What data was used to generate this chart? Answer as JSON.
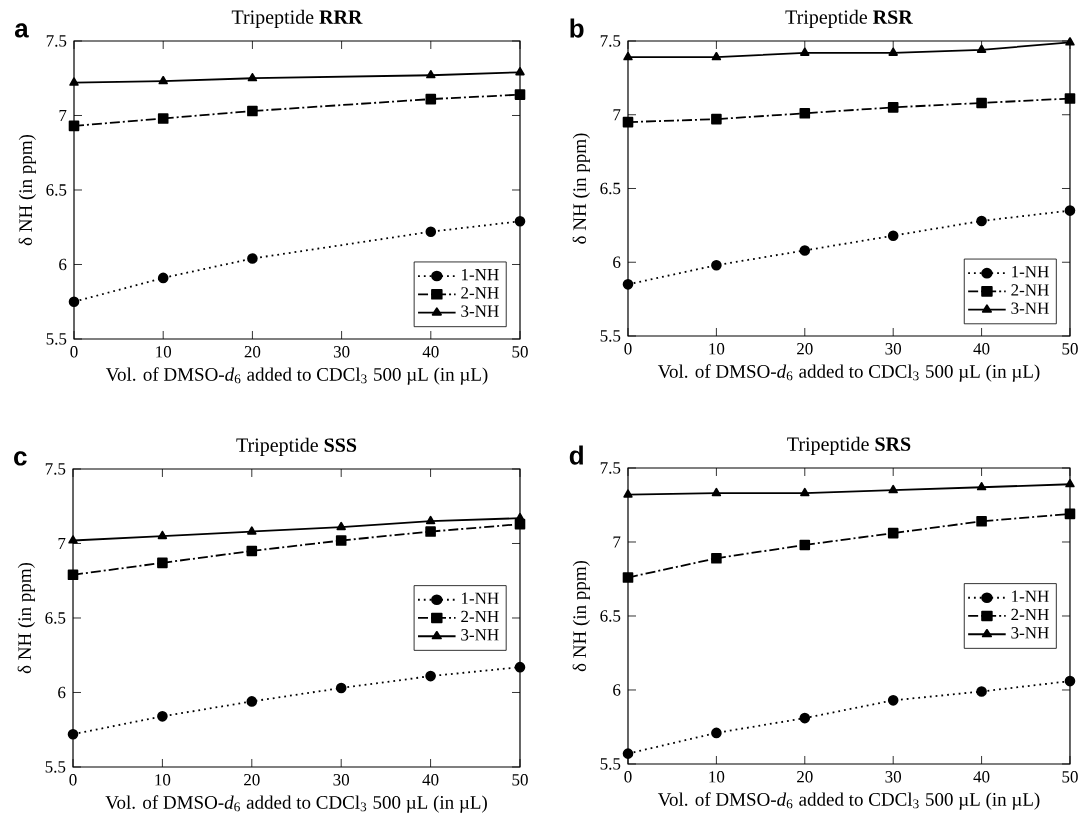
{
  "chart_data": [
    {
      "type": "line",
      "title": "Tripeptide **RRR**",
      "xlabel": "Vol. of DMSO-*d*$_{6}$ added to CDCl$_{3}$ 500 µL (in µL)",
      "ylabel": "δ NH (in ppm)",
      "annotations": [
        "a"
      ],
      "x": [
        0,
        10,
        20,
        40,
        50
      ],
      "xlim": [
        0,
        50
      ],
      "ylim": [
        5.5,
        7.5
      ],
      "xticks": [
        0,
        10,
        20,
        30,
        40,
        50
      ],
      "yticks": [
        5.5,
        6,
        6.5,
        7,
        7.5
      ],
      "legend": "bottom right",
      "series": [
        {
          "name": "1-NH",
          "color": "#000000",
          "marker": "circle",
          "line_style": "dotted",
          "values": [
            5.75,
            5.91,
            6.04,
            6.22,
            6.29
          ]
        },
        {
          "name": "2-NH",
          "color": "#000000",
          "marker": "square",
          "line_style": "dashdot",
          "values": [
            6.93,
            6.98,
            7.03,
            7.11,
            7.14
          ]
        },
        {
          "name": "3-NH",
          "color": "#000000",
          "marker": "triangle",
          "line_style": "solid",
          "values": [
            7.22,
            7.23,
            7.25,
            7.27,
            7.29
          ]
        }
      ]
    },
    {
      "type": "line",
      "title": "Tripeptide **RSR**",
      "xlabel": "Vol. of DMSO-*d*$_{6}$ added to CDCl$_{3}$ 500 µL (in µL)",
      "ylabel": "δ NH (in ppm)",
      "annotations": [
        "b"
      ],
      "x": [
        0,
        10,
        20,
        30,
        40,
        50
      ],
      "xlim": [
        0,
        50
      ],
      "ylim": [
        5.5,
        7.5
      ],
      "xticks": [
        0,
        10,
        20,
        30,
        40,
        50
      ],
      "yticks": [
        5.5,
        6,
        6.5,
        7,
        7.5
      ],
      "legend": "bottom right",
      "series": [
        {
          "name": "1-NH",
          "color": "#000000",
          "marker": "circle",
          "line_style": "dotted",
          "values": [
            5.85,
            5.98,
            6.08,
            6.18,
            6.28,
            6.35
          ]
        },
        {
          "name": "2-NH",
          "color": "#000000",
          "marker": "square",
          "line_style": "dashdot",
          "values": [
            6.95,
            6.97,
            7.01,
            7.05,
            7.08,
            7.11
          ]
        },
        {
          "name": "3-NH",
          "color": "#000000",
          "marker": "triangle",
          "line_style": "solid",
          "values": [
            7.39,
            7.39,
            7.42,
            7.42,
            7.44,
            7.49
          ]
        }
      ]
    },
    {
      "type": "line",
      "title": "Tripeptide **SSS**",
      "xlabel": "Vol. of DMSO-*d*$_{6}$ added to CDCl$_{3}$ 500 µL (in µL)",
      "ylabel": "δ NH (in ppm)",
      "annotations": [
        "c"
      ],
      "x": [
        0,
        10,
        20,
        30,
        40,
        50
      ],
      "xlim": [
        0,
        50
      ],
      "ylim": [
        5.5,
        7.5
      ],
      "xticks": [
        0,
        10,
        20,
        30,
        40,
        50
      ],
      "yticks": [
        5.5,
        6,
        6.5,
        7,
        7.5
      ],
      "legend": "right",
      "series": [
        {
          "name": "1-NH",
          "color": "#000000",
          "marker": "circle",
          "line_style": "dotted",
          "values": [
            5.72,
            5.84,
            5.94,
            6.03,
            6.11,
            6.17
          ]
        },
        {
          "name": "2-NH",
          "color": "#000000",
          "marker": "square",
          "line_style": "dashdot",
          "values": [
            6.79,
            6.87,
            6.95,
            7.02,
            7.08,
            7.13
          ]
        },
        {
          "name": "3-NH",
          "color": "#000000",
          "marker": "triangle",
          "line_style": "solid",
          "values": [
            7.02,
            7.05,
            7.08,
            7.11,
            7.15,
            7.17
          ]
        }
      ]
    },
    {
      "type": "line",
      "title": "Tripeptide **SRS**",
      "xlabel": "Vol. of DMSO-*d*$_{6}$ added to CDCl$_{3}$ 500 µL (in µL)",
      "ylabel": "δ NH (in ppm)",
      "annotations": [
        "d"
      ],
      "x": [
        0,
        10,
        20,
        30,
        40,
        50
      ],
      "xlim": [
        0,
        50
      ],
      "ylim": [
        5.5,
        7.5
      ],
      "xticks": [
        0,
        10,
        20,
        30,
        40,
        50
      ],
      "yticks": [
        5.5,
        6,
        6.5,
        7,
        7.5
      ],
      "legend": "right",
      "series": [
        {
          "name": "1-NH",
          "color": "#000000",
          "marker": "circle",
          "line_style": "dotted",
          "values": [
            5.57,
            5.71,
            5.81,
            5.93,
            5.99,
            6.06
          ]
        },
        {
          "name": "2-NH",
          "color": "#000000",
          "marker": "square",
          "line_style": "dashdot",
          "values": [
            6.76,
            6.89,
            6.98,
            7.06,
            7.14,
            7.19
          ]
        },
        {
          "name": "3-NH",
          "color": "#000000",
          "marker": "triangle",
          "line_style": "solid",
          "values": [
            7.32,
            7.33,
            7.33,
            7.35,
            7.37,
            7.39
          ]
        }
      ]
    }
  ]
}
